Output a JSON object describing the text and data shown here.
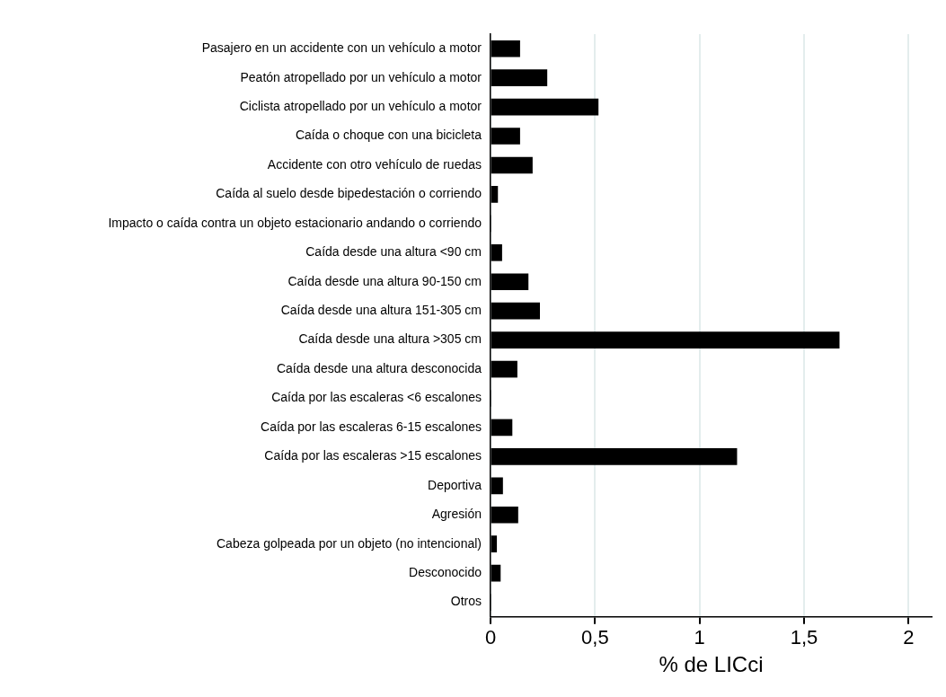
{
  "chart_data": {
    "type": "bar",
    "orientation": "horizontal",
    "xlabel": "% de LICci",
    "categories": [
      "Pasajero en un accidente con un vehículo a motor",
      "Peatón atropellado por un vehículo a motor",
      "Ciclista atropellado por un vehículo a motor",
      "Caída o choque con una bicicleta",
      "Accidente con otro vehículo de ruedas",
      "Caída al suelo desde bipedestación o corriendo",
      "Impacto o caída contra un objeto estacionario andando o corriendo",
      "Caída desde una altura <90 cm",
      "Caída desde una altura 90-150 cm",
      "Caída desde una altura 151-305 cm",
      "Caída desde una altura >305 cm",
      "Caída desde una altura desconocida",
      "Caída por las escaleras <6 escalones",
      "Caída por las escaleras 6-15 escalones",
      "Caída por las escaleras >15 escalones",
      "Deportiva",
      "Agresión",
      "Cabeza golpeada por un objeto (no intencional)",
      "Desconocido",
      "Otros"
    ],
    "values": [
      0.14,
      0.27,
      0.515,
      0.14,
      0.2,
      0.034,
      0,
      0.054,
      0.18,
      0.235,
      1.668,
      0.127,
      0,
      0.103,
      1.178,
      0.058,
      0.131,
      0.029,
      0.047,
      0
    ],
    "color": "#000000",
    "xlim": [
      0,
      2.11
    ],
    "xticks": [
      0,
      {
        "value": 0.5,
        "label": "0,5"
      },
      1,
      {
        "value": 1.5,
        "label": "1,5"
      },
      2
    ],
    "grid": "x",
    "legend": false
  }
}
